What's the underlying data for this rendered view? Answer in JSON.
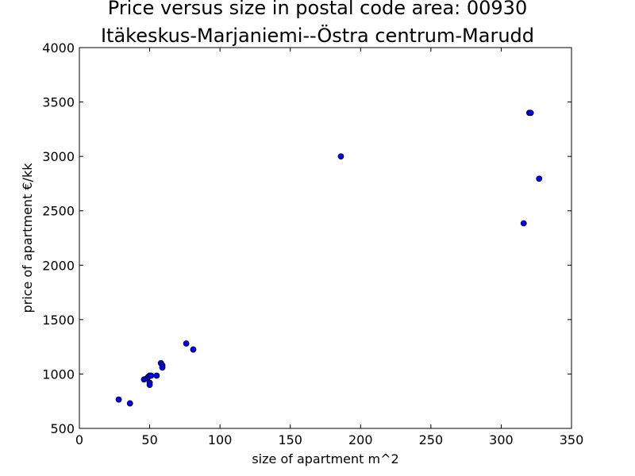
{
  "chart_data": {
    "type": "scatter",
    "title_lines": [
      "Price versus size in postal code area: 00930",
      "Itäkeskus-Marjaniemi--Östra centrum-Marudd"
    ],
    "xlabel": "size of apartment m^2",
    "ylabel": "price of apartment €/kk",
    "xlim": [
      0,
      350
    ],
    "ylim": [
      500,
      4000
    ],
    "xticks": [
      0,
      50,
      100,
      150,
      200,
      250,
      300,
      350
    ],
    "yticks": [
      500,
      1000,
      1500,
      2000,
      2500,
      3000,
      3500,
      4000
    ],
    "grid": false,
    "marker_color": "#0000ff",
    "marker_edge_color": "#000000",
    "points": [
      {
        "x": 28,
        "y": 765
      },
      {
        "x": 36,
        "y": 730
      },
      {
        "x": 46,
        "y": 950
      },
      {
        "x": 48,
        "y": 960
      },
      {
        "x": 49,
        "y": 975
      },
      {
        "x": 50,
        "y": 985
      },
      {
        "x": 50,
        "y": 920
      },
      {
        "x": 50,
        "y": 900
      },
      {
        "x": 51,
        "y": 985
      },
      {
        "x": 55,
        "y": 985
      },
      {
        "x": 58,
        "y": 1100
      },
      {
        "x": 59,
        "y": 1080
      },
      {
        "x": 59,
        "y": 1060
      },
      {
        "x": 76,
        "y": 1280
      },
      {
        "x": 81,
        "y": 1225
      },
      {
        "x": 186,
        "y": 3000
      },
      {
        "x": 316,
        "y": 2385
      },
      {
        "x": 320,
        "y": 3400
      },
      {
        "x": 321,
        "y": 3400
      },
      {
        "x": 327,
        "y": 2795
      }
    ]
  }
}
